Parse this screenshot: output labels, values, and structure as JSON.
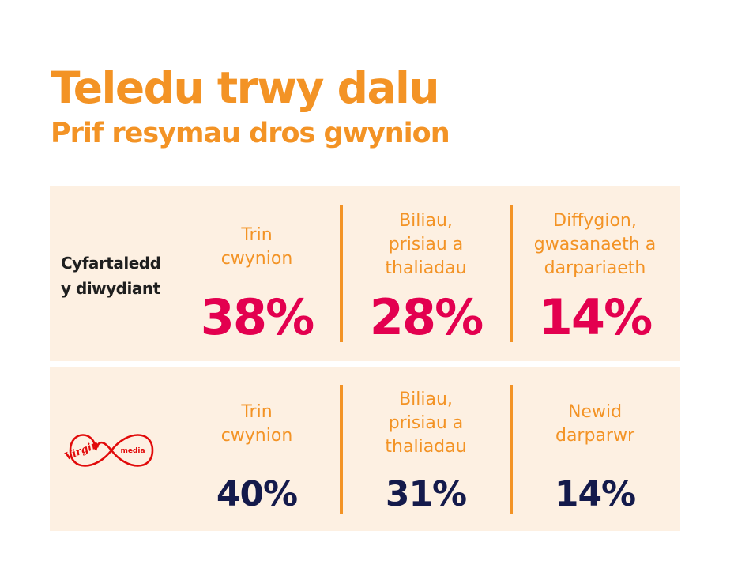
{
  "header": {
    "title": "Teledu trwy dalu",
    "subtitle": "Prif resymau dros gwynion"
  },
  "industry": {
    "label_line1": "Cyfartaledd",
    "label_line2": "y diwydiant",
    "items": [
      {
        "reason_lines": [
          "Trin",
          "cwynion"
        ],
        "percent": "38%"
      },
      {
        "reason_lines": [
          "Biliau,",
          "prisiau a",
          "thaliadau"
        ],
        "percent": "28%"
      },
      {
        "reason_lines": [
          "Diffygion,",
          "gwasanaeth a",
          "darpariaeth"
        ],
        "percent": "14%"
      }
    ]
  },
  "virgin": {
    "logo": {
      "word1": "Virgin",
      "word2": "media",
      "color": "#e10a0a"
    },
    "items": [
      {
        "reason_lines": [
          "Trin",
          "cwynion"
        ],
        "percent": "40%"
      },
      {
        "reason_lines": [
          "Biliau,",
          "prisiau a",
          "thaliadau"
        ],
        "percent": "31%"
      },
      {
        "reason_lines": [
          "Newid",
          "darparwr"
        ],
        "percent": "14%"
      }
    ]
  },
  "colors": {
    "accent_orange": "#f39325",
    "industry_percent": "#e3004f",
    "virgin_percent": "#141a4b",
    "panel_bg": "#fdf0e2"
  }
}
